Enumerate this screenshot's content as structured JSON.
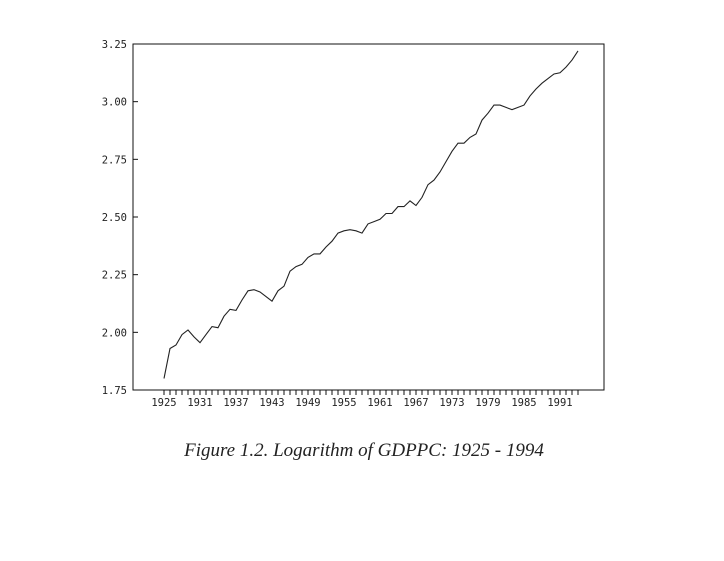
{
  "chart_data": {
    "type": "line",
    "title": "Figure 1.2.  Logarithm of GDPPC: 1925 - 1994",
    "xlabel": "",
    "ylabel": "",
    "xlim": [
      1923,
      1998
    ],
    "ylim": [
      1.75,
      3.25
    ],
    "grid": false,
    "yticks": [
      "1.75",
      "2.00",
      "2.25",
      "2.50",
      "2.75",
      "3.00",
      "3.25"
    ],
    "xticks": [
      "1925",
      "1931",
      "1937",
      "1943",
      "1949",
      "1955",
      "1961",
      "1967",
      "1973",
      "1979",
      "1985",
      "1991"
    ],
    "series": [
      {
        "name": "Logarithm of GDPPC",
        "color": "#222222",
        "x_start": 1925,
        "values": [
          1.8,
          1.93,
          1.945,
          1.99,
          2.01,
          1.98,
          1.955,
          1.99,
          2.025,
          2.02,
          2.07,
          2.1,
          2.095,
          2.14,
          2.18,
          2.185,
          2.175,
          2.155,
          2.135,
          2.18,
          2.2,
          2.265,
          2.285,
          2.295,
          2.325,
          2.34,
          2.34,
          2.37,
          2.395,
          2.43,
          2.44,
          2.445,
          2.44,
          2.43,
          2.47,
          2.48,
          2.49,
          2.515,
          2.515,
          2.545,
          2.545,
          2.57,
          2.55,
          2.585,
          2.64,
          2.66,
          2.695,
          2.74,
          2.785,
          2.82,
          2.82,
          2.845,
          2.86,
          2.92,
          2.95,
          2.985,
          2.985,
          2.975,
          2.965,
          2.975,
          2.985,
          3.025,
          3.055,
          3.08,
          3.1,
          3.12,
          3.125,
          3.15,
          3.18,
          3.22
        ]
      }
    ]
  }
}
